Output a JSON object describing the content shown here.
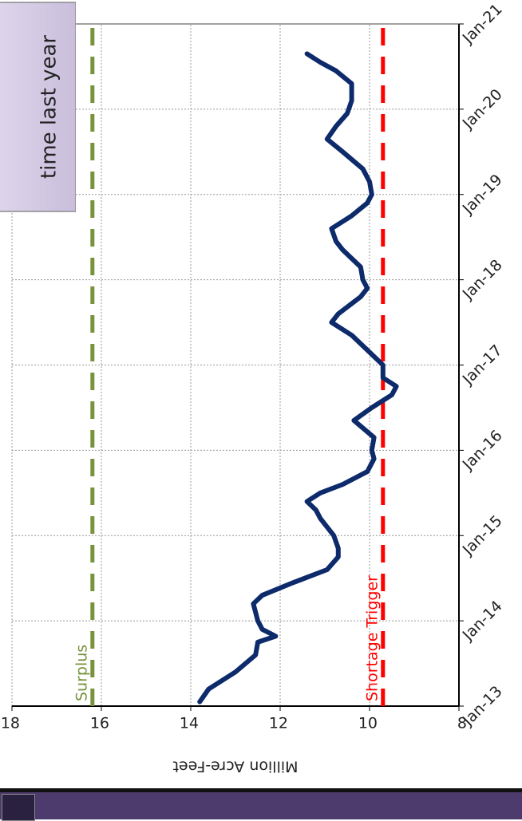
{
  "chart_data": {
    "type": "line",
    "y_label": "Million Acre-Feet",
    "xlim": [
      2013,
      2021
    ],
    "xticks": [
      {
        "value": 2013,
        "label": "Jan-13"
      },
      {
        "value": 2014,
        "label": "Jan-14"
      },
      {
        "value": 2015,
        "label": "Jan-15"
      },
      {
        "value": 2016,
        "label": "Jan-16"
      },
      {
        "value": 2017,
        "label": "Jan-17"
      },
      {
        "value": 2018,
        "label": "Jan-18"
      },
      {
        "value": 2019,
        "label": "Jan-19"
      },
      {
        "value": 2020,
        "label": "Jan-20"
      },
      {
        "value": 2021,
        "label": "Jan-21"
      }
    ],
    "ylim": [
      8,
      18
    ],
    "yticks": [
      8,
      10,
      12,
      14,
      16,
      18
    ],
    "grid": true,
    "series": [
      {
        "color": "#0d2a6b",
        "x": [
          2013.05,
          2013.2,
          2013.4,
          2013.6,
          2013.75,
          2013.82,
          2013.9,
          2014.0,
          2014.2,
          2014.3,
          2014.45,
          2014.6,
          2014.75,
          2014.85,
          2015.0,
          2015.1,
          2015.2,
          2015.3,
          2015.4,
          2015.5,
          2015.6,
          2015.75,
          2015.9,
          2016.0,
          2016.15,
          2016.35,
          2016.5,
          2016.65,
          2016.75,
          2016.85,
          2017.0,
          2017.15,
          2017.35,
          2017.5,
          2017.6,
          2017.8,
          2017.9,
          2018.0,
          2018.15,
          2018.25,
          2018.35,
          2018.45,
          2018.6,
          2018.75,
          2018.9,
          2019.0,
          2019.15,
          2019.3,
          2019.5,
          2019.65,
          2019.8,
          2019.95,
          2020.1,
          2020.3,
          2020.45,
          2020.55,
          2020.65
        ],
        "values": [
          13.8,
          13.6,
          13.0,
          12.55,
          12.5,
          12.1,
          12.4,
          12.5,
          12.6,
          12.4,
          11.7,
          10.95,
          10.7,
          10.7,
          10.8,
          10.95,
          11.1,
          11.2,
          11.4,
          11.1,
          10.6,
          10.05,
          9.9,
          9.95,
          9.9,
          10.35,
          9.95,
          9.5,
          9.4,
          9.7,
          9.7,
          10.0,
          10.4,
          10.85,
          10.7,
          10.2,
          10.05,
          10.15,
          10.2,
          10.4,
          10.6,
          10.75,
          10.85,
          10.4,
          10.05,
          9.95,
          10.0,
          10.15,
          10.6,
          10.95,
          10.75,
          10.5,
          10.4,
          10.4,
          10.75,
          11.1,
          11.4
        ]
      }
    ],
    "annotations": [
      {
        "text": "Surplus",
        "value": 16.2,
        "color": "#77933c"
      },
      {
        "text": "Shortage Trigger",
        "value": 9.7,
        "color": "#ff0000"
      }
    ],
    "callout": "time last year"
  }
}
